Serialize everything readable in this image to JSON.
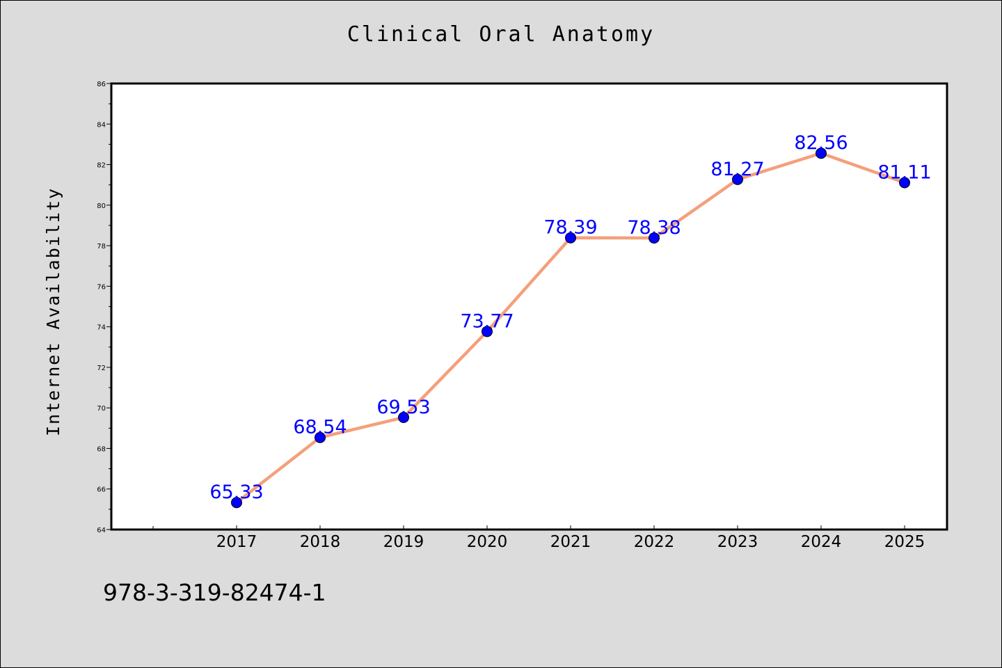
{
  "chart_data": {
    "type": "line",
    "title": "Clinical Oral Anatomy",
    "xlabel": "",
    "ylabel": "Internet Availability",
    "categories": [
      "2017",
      "2018",
      "2019",
      "2020",
      "2021",
      "2022",
      "2023",
      "2024",
      "2025"
    ],
    "series": [
      {
        "values": [
          65.33,
          68.54,
          69.53,
          73.77,
          78.39,
          78.38,
          81.27,
          82.56,
          81.11
        ],
        "labels": [
          "65.33",
          "68.54",
          "69.53",
          "73.77",
          "78.39",
          "78.38",
          "81.27",
          "82.56",
          "81.11"
        ],
        "line_color": "#f4a07c",
        "marker_color": "#0000ff",
        "label_color": "#0000ff"
      }
    ],
    "ylim": [
      64,
      86
    ],
    "yticks": [
      "64",
      "66",
      "68",
      "70",
      "72",
      "74",
      "76",
      "78",
      "80",
      "82",
      "84",
      "86"
    ],
    "grid": false,
    "legend": "none"
  },
  "footer": {
    "code": "978-3-319-82474-1"
  },
  "colors": {
    "background": "#dcdcdc",
    "plot_background": "#ffffff"
  }
}
